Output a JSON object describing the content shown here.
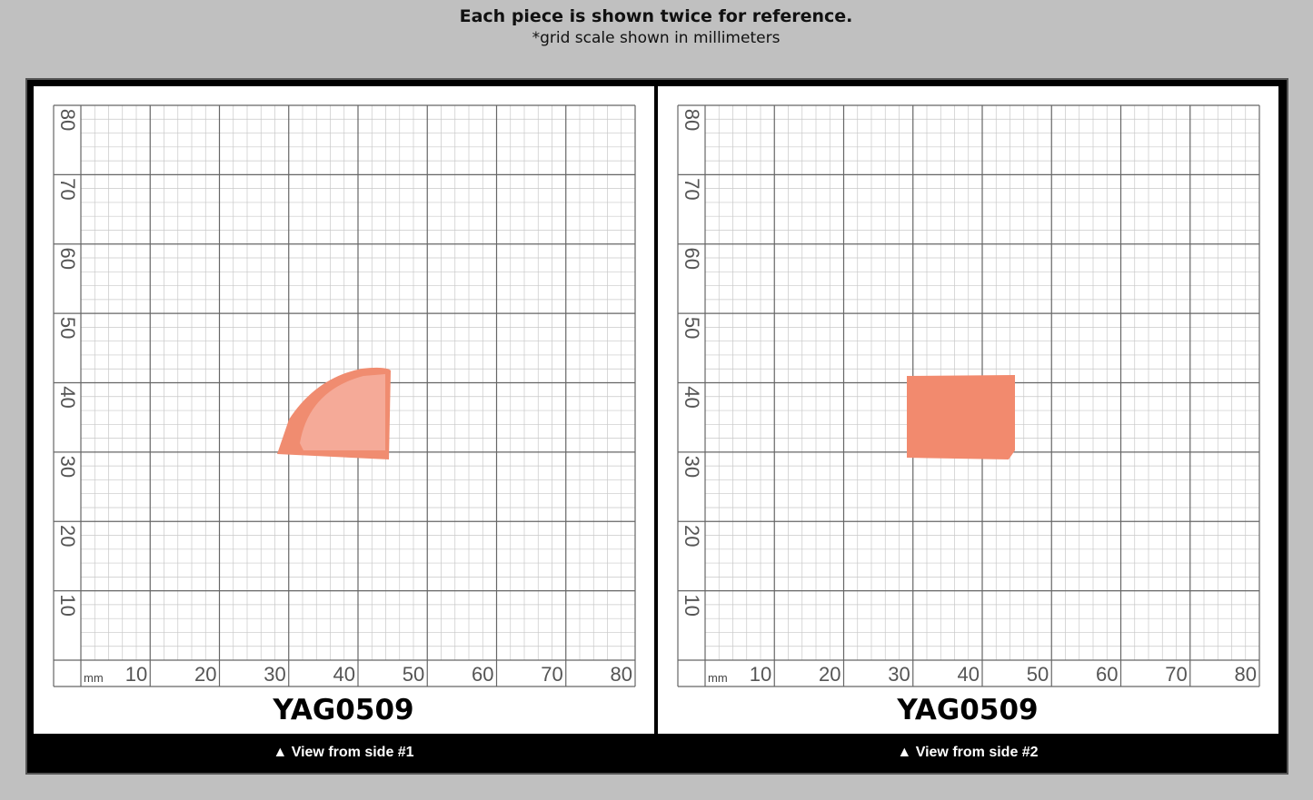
{
  "header": {
    "title": "Each piece is shown twice for reference.",
    "subtitle": "*grid scale shown in millimeters"
  },
  "panels": [
    {
      "unit": "mm",
      "x_labels": [
        10,
        20,
        30,
        40,
        50,
        60,
        70,
        80
      ],
      "y_labels": [
        80,
        70,
        60,
        50,
        40,
        30,
        20,
        10
      ],
      "sample": "YAG0509",
      "caption": "▲ View from side #1"
    },
    {
      "unit": "mm",
      "x_labels": [
        10,
        20,
        30,
        40,
        50,
        60,
        70,
        80
      ],
      "y_labels": [
        80,
        70,
        60,
        50,
        40,
        30,
        20,
        10
      ],
      "sample": "YAG0509",
      "caption": "▲ View from side #2"
    }
  ]
}
